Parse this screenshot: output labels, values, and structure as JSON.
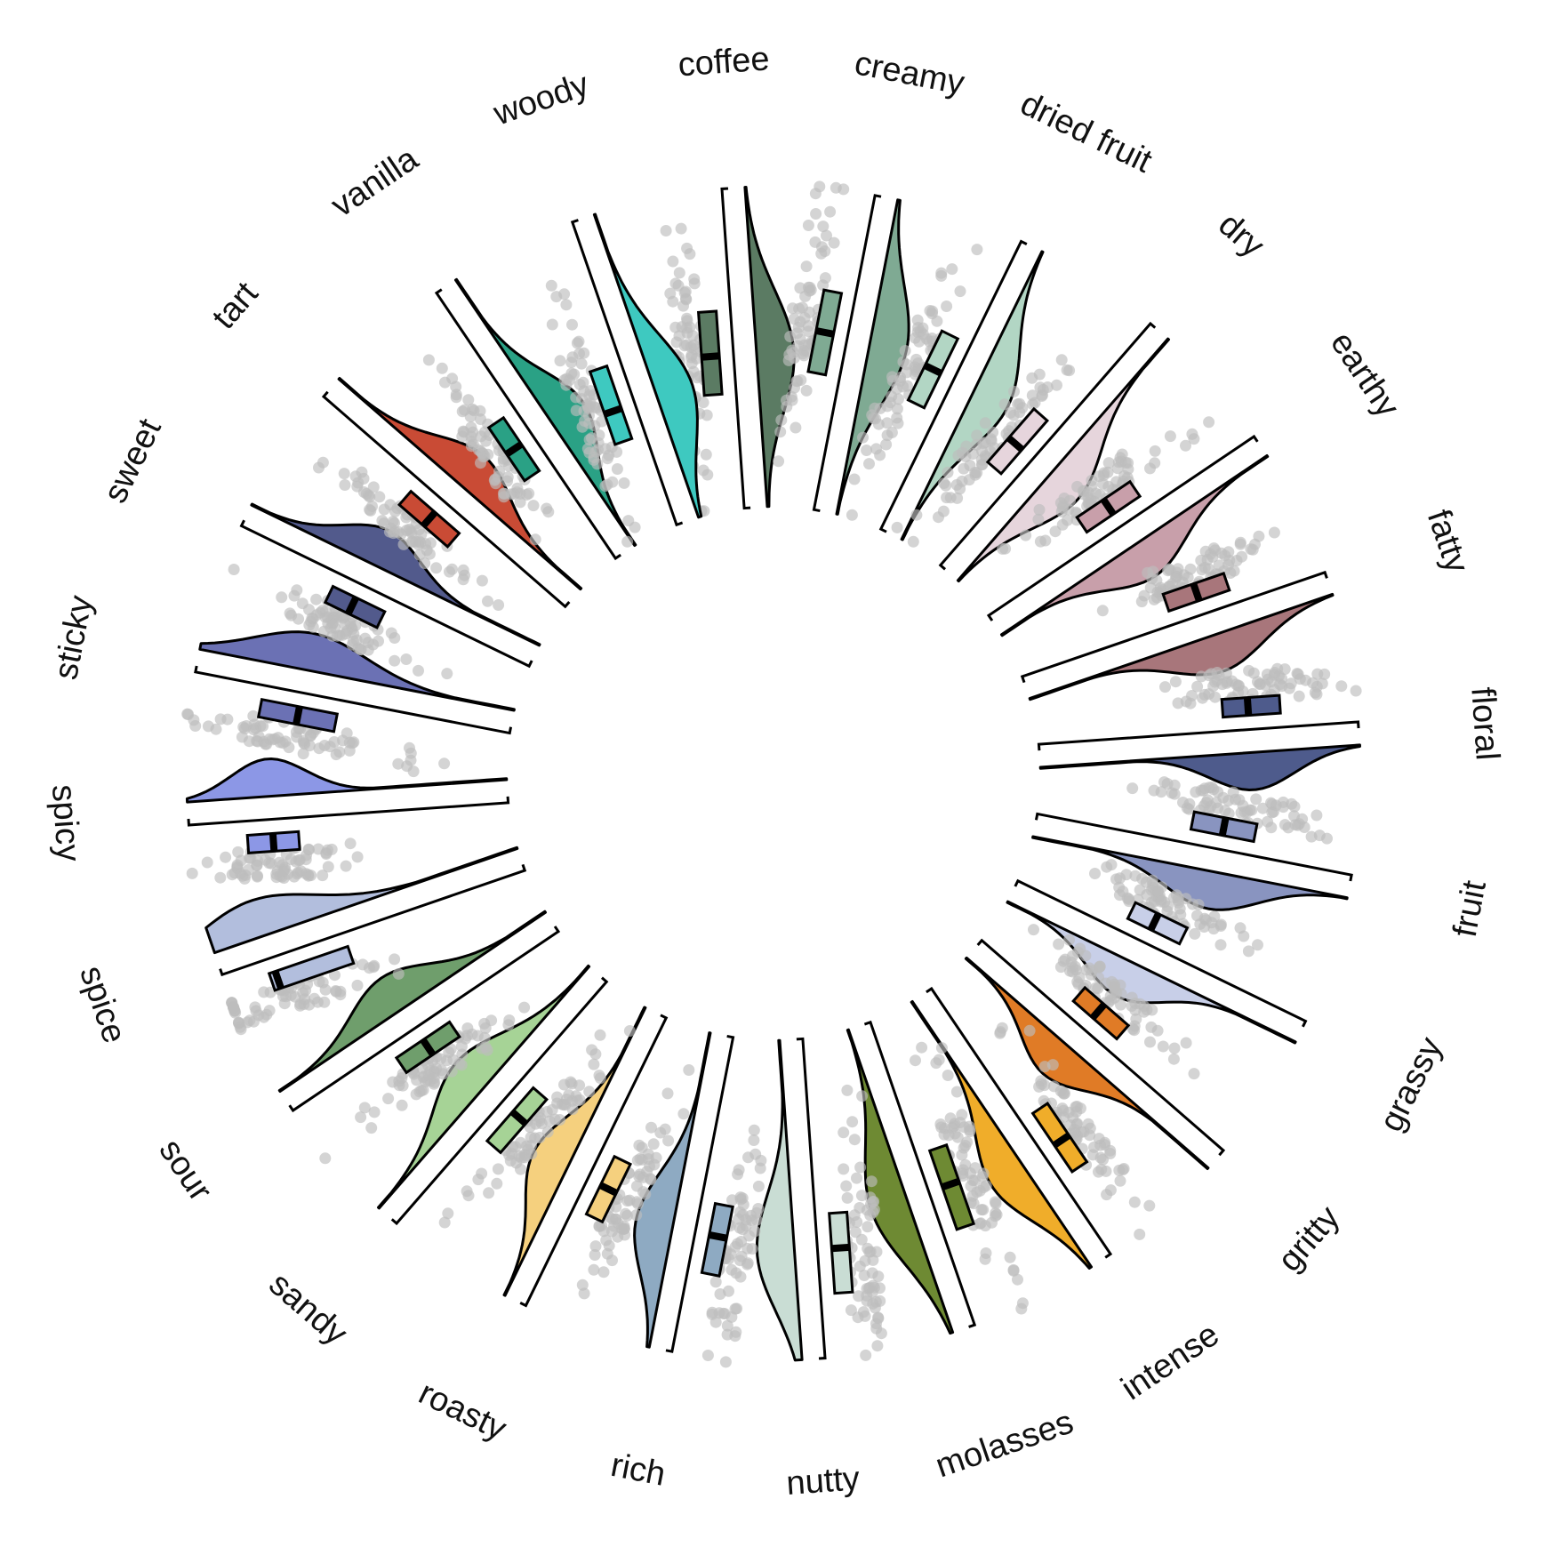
{
  "chart_data": {
    "type": "raincloud-radial",
    "title": "",
    "xlabel": "",
    "ylabel": "",
    "categories": [
      {
        "name": "coffee",
        "color": "#5b7b63",
        "median": 0.48,
        "q1": 0.36,
        "q3": 0.62
      },
      {
        "name": "creamy",
        "color": "#7faa93",
        "median": 0.55,
        "q1": 0.42,
        "q3": 0.68
      },
      {
        "name": "dried fruit",
        "color": "#b2d6c4",
        "median": 0.52,
        "q1": 0.4,
        "q3": 0.64
      },
      {
        "name": "dry",
        "color": "#e6d5dc",
        "median": 0.44,
        "q1": 0.34,
        "q3": 0.56
      },
      {
        "name": "earthy",
        "color": "#c89faa",
        "median": 0.5,
        "q1": 0.4,
        "q3": 0.6
      },
      {
        "name": "fatty",
        "color": "#a8767b",
        "median": 0.6,
        "q1": 0.5,
        "q3": 0.7
      },
      {
        "name": "floral",
        "color": "#4e5b8c",
        "median": 0.66,
        "q1": 0.58,
        "q3": 0.76
      },
      {
        "name": "fruit",
        "color": "#8994c0",
        "median": 0.58,
        "q1": 0.48,
        "q3": 0.68
      },
      {
        "name": "grassy",
        "color": "#c8cfe8",
        "median": 0.44,
        "q1": 0.36,
        "q3": 0.54
      },
      {
        "name": "gritty",
        "color": "#e07b26",
        "median": 0.42,
        "q1": 0.34,
        "q3": 0.52
      },
      {
        "name": "intense",
        "color": "#f0ad2a",
        "median": 0.62,
        "q1": 0.5,
        "q3": 0.72
      },
      {
        "name": "molasses",
        "color": "#6e8a33",
        "median": 0.56,
        "q1": 0.44,
        "q3": 0.7
      },
      {
        "name": "nutty",
        "color": "#c9ddd4",
        "median": 0.66,
        "q1": 0.55,
        "q3": 0.8
      },
      {
        "name": "rich",
        "color": "#8eaac2",
        "median": 0.62,
        "q1": 0.52,
        "q3": 0.74
      },
      {
        "name": "roasty",
        "color": "#f5d07e",
        "median": 0.56,
        "q1": 0.46,
        "q3": 0.66
      },
      {
        "name": "sandy",
        "color": "#a6d396",
        "median": 0.5,
        "q1": 0.4,
        "q3": 0.62
      },
      {
        "name": "sour",
        "color": "#6f9e6c",
        "median": 0.54,
        "q1": 0.44,
        "q3": 0.64
      },
      {
        "name": "spice",
        "color": "#b2bedd",
        "median": 0.84,
        "q1": 0.6,
        "q3": 0.86
      },
      {
        "name": "spicy",
        "color": "#8c97e6",
        "median": 0.74,
        "q1": 0.66,
        "q3": 0.82
      },
      {
        "name": "sticky",
        "color": "#6b71b4",
        "median": 0.66,
        "q1": 0.54,
        "q3": 0.78
      },
      {
        "name": "sweet",
        "color": "#525a8c",
        "median": 0.58,
        "q1": 0.48,
        "q3": 0.66
      },
      {
        "name": "tart",
        "color": "#c94b35",
        "median": 0.5,
        "q1": 0.4,
        "q3": 0.6
      },
      {
        "name": "vanilla",
        "color": "#2aa185",
        "median": 0.46,
        "q1": 0.36,
        "q3": 0.56
      },
      {
        "name": "woody",
        "color": "#3ec9c0",
        "median": 0.4,
        "q1": 0.3,
        "q3": 0.54
      }
    ],
    "point_color": "#bdbdbd",
    "grid": false,
    "legend": "none"
  }
}
